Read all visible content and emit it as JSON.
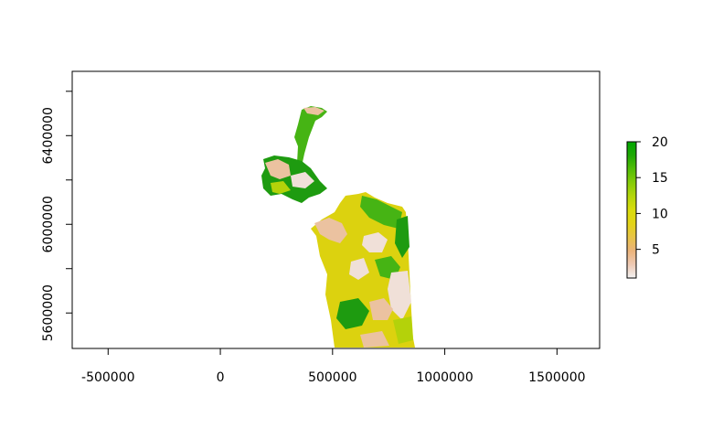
{
  "map": {
    "x_ticks": [
      "-500000",
      "0",
      "500000",
      "1000000",
      "1500000"
    ],
    "x_tick_values": [
      -500000,
      0,
      500000,
      1000000,
      1500000
    ],
    "x_range": [
      -660000,
      1690000
    ],
    "y_ticks": [
      "5600000",
      "6000000",
      "6400000"
    ],
    "y_tick_values": [
      5600000,
      6000000,
      6400000
    ],
    "y_minor_ticks": [
      5800000,
      6200000,
      6600000
    ],
    "y_range": [
      5440000,
      6690000
    ]
  },
  "legend": {
    "labels": [
      "5",
      "10",
      "15",
      "20"
    ],
    "values": [
      5,
      10,
      15,
      20
    ],
    "range": [
      1,
      20
    ],
    "colors": [
      "#f2f2f2",
      "#eec9b3",
      "#ebb37a",
      "#e8c447",
      "#e3d417",
      "#d9dc0c",
      "#b5d60a",
      "#86cc08",
      "#52bd06",
      "#1fa804",
      "#00a600"
    ]
  },
  "colors": {
    "pale": "#f0e0d8",
    "salmon": "#ebc2a0",
    "yellow": "#dcd20f",
    "yellow_green": "#b4d20a",
    "green": "#46b414",
    "dark_green": "#1e9b10"
  }
}
